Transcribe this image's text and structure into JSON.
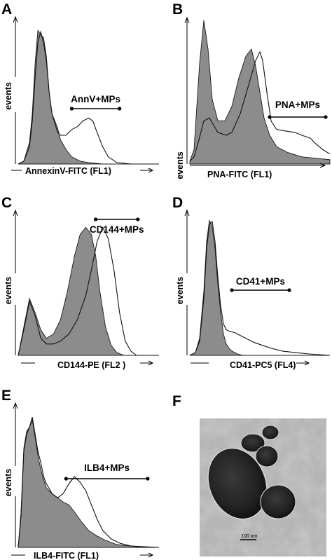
{
  "chart_data": [
    {
      "panel": "A",
      "type": "histogram-overlay",
      "ylabel": "events",
      "xlabel": "AnnexinV-FITC  (FL1)",
      "gate_label": "AnnV+MPs",
      "gate_range": [
        0.38,
        0.72
      ],
      "series": [
        {
          "style": "filled",
          "x": [
            0,
            0.04,
            0.08,
            0.1,
            0.12,
            0.14,
            0.16,
            0.18,
            0.2,
            0.22,
            0.24,
            0.26,
            0.28,
            0.3,
            0.34,
            0.38,
            0.44,
            0.5,
            0.6,
            1.0
          ],
          "y": [
            0,
            0.02,
            0.15,
            0.35,
            0.7,
            0.93,
            0.9,
            0.88,
            0.75,
            0.5,
            0.35,
            0.3,
            0.25,
            0.17,
            0.1,
            0.05,
            0.02,
            0.01,
            0,
            0
          ]
        },
        {
          "style": "open",
          "x": [
            0,
            0.04,
            0.08,
            0.1,
            0.12,
            0.14,
            0.16,
            0.18,
            0.2,
            0.22,
            0.24,
            0.28,
            0.3,
            0.34,
            0.38,
            0.42,
            0.46,
            0.5,
            0.53,
            0.56,
            0.6,
            0.64,
            0.7,
            0.8,
            1.0
          ],
          "y": [
            0,
            0.02,
            0.12,
            0.3,
            0.6,
            0.85,
            0.92,
            0.84,
            0.72,
            0.5,
            0.35,
            0.22,
            0.2,
            0.2,
            0.24,
            0.26,
            0.3,
            0.32,
            0.3,
            0.22,
            0.12,
            0.05,
            0.01,
            0,
            0
          ]
        }
      ]
    },
    {
      "panel": "B",
      "type": "histogram-overlay",
      "ylabel": "events",
      "xlabel": "PNA-FITC  (FL1)",
      "gate_label": "PNA+MPs",
      "gate_range": [
        0.57,
        0.97
      ],
      "series": [
        {
          "style": "filled",
          "x": [
            0,
            0.03,
            0.07,
            0.1,
            0.13,
            0.16,
            0.2,
            0.25,
            0.3,
            0.35,
            0.4,
            0.44,
            0.47,
            0.5,
            0.53,
            0.57,
            0.62,
            0.7,
            0.8,
            0.9,
            1.0
          ],
          "y": [
            0.02,
            0.1,
            0.7,
            1.0,
            0.8,
            0.45,
            0.3,
            0.3,
            0.4,
            0.6,
            0.75,
            0.8,
            0.68,
            0.5,
            0.32,
            0.2,
            0.12,
            0.08,
            0.05,
            0.04,
            0.03
          ]
        },
        {
          "style": "open",
          "x": [
            0,
            0.03,
            0.06,
            0.1,
            0.14,
            0.2,
            0.26,
            0.3,
            0.36,
            0.42,
            0.47,
            0.5,
            0.52,
            0.55,
            0.58,
            0.62,
            0.68,
            0.75,
            0.8,
            0.86,
            0.9,
            0.95,
            1.0
          ],
          "y": [
            0.02,
            0.05,
            0.15,
            0.3,
            0.32,
            0.22,
            0.2,
            0.22,
            0.35,
            0.55,
            0.72,
            0.78,
            0.72,
            0.5,
            0.3,
            0.24,
            0.23,
            0.22,
            0.2,
            0.18,
            0.14,
            0.1,
            0.07
          ]
        }
      ]
    },
    {
      "panel": "C",
      "type": "histogram-overlay",
      "ylabel": "events",
      "xlabel": "CD144-PE  (FL2 )",
      "gate_label": "CD144+MPs",
      "gate_range": [
        0.55,
        0.85
      ],
      "series": [
        {
          "style": "filled",
          "x": [
            0,
            0.04,
            0.08,
            0.12,
            0.16,
            0.2,
            0.25,
            0.3,
            0.35,
            0.4,
            0.44,
            0.48,
            0.52,
            0.55,
            0.58,
            0.62,
            0.66,
            0.7,
            0.75,
            1.0
          ],
          "y": [
            0,
            0.2,
            0.4,
            0.3,
            0.18,
            0.12,
            0.15,
            0.25,
            0.45,
            0.7,
            0.85,
            0.9,
            0.85,
            0.7,
            0.45,
            0.2,
            0.07,
            0.02,
            0,
            0
          ]
        },
        {
          "style": "open",
          "x": [
            0,
            0.04,
            0.08,
            0.12,
            0.16,
            0.2,
            0.25,
            0.3,
            0.36,
            0.42,
            0.48,
            0.52,
            0.56,
            0.6,
            0.64,
            0.68,
            0.72,
            0.76,
            0.8,
            0.84,
            1.0
          ],
          "y": [
            0,
            0.18,
            0.38,
            0.28,
            0.12,
            0.08,
            0.08,
            0.1,
            0.15,
            0.25,
            0.42,
            0.6,
            0.8,
            0.9,
            0.82,
            0.6,
            0.3,
            0.1,
            0.03,
            0,
            0
          ]
        }
      ]
    },
    {
      "panel": "D",
      "type": "histogram-overlay",
      "ylabel": "events",
      "xlabel": "CD41-PC5  (FL4)",
      "gate_label": "CD41+MPs",
      "gate_range": [
        0.3,
        0.71
      ],
      "series": [
        {
          "style": "filled",
          "x": [
            0,
            0.04,
            0.07,
            0.1,
            0.12,
            0.14,
            0.16,
            0.18,
            0.2,
            0.22,
            0.24,
            0.26,
            0.28,
            0.3,
            0.32,
            0.34,
            0.38,
            1.0
          ],
          "y": [
            0,
            0.02,
            0.12,
            0.45,
            0.8,
            0.95,
            0.9,
            0.75,
            0.5,
            0.3,
            0.15,
            0.08,
            0.05,
            0.03,
            0.02,
            0.01,
            0,
            0
          ]
        },
        {
          "style": "open",
          "x": [
            0,
            0.04,
            0.07,
            0.1,
            0.12,
            0.14,
            0.16,
            0.18,
            0.2,
            0.22,
            0.24,
            0.26,
            0.28,
            0.32,
            0.36,
            0.4,
            0.46,
            0.52,
            0.58,
            0.66,
            0.75,
            0.85,
            1.0
          ],
          "y": [
            0,
            0.02,
            0.1,
            0.4,
            0.75,
            0.92,
            0.94,
            0.8,
            0.55,
            0.35,
            0.22,
            0.18,
            0.17,
            0.16,
            0.14,
            0.12,
            0.09,
            0.07,
            0.05,
            0.03,
            0.02,
            0.01,
            0
          ]
        }
      ]
    },
    {
      "panel": "E",
      "type": "histogram-overlay",
      "ylabel": "events",
      "xlabel": "ILB4-FITC  (FL1)",
      "gate_label": "ILB4+MPs",
      "gate_range": [
        0.34,
        0.92
      ],
      "series": [
        {
          "style": "filled",
          "x": [
            0,
            0.02,
            0.04,
            0.06,
            0.08,
            0.1,
            0.12,
            0.14,
            0.16,
            0.18,
            0.2,
            0.24,
            0.28,
            0.32,
            0.36,
            0.4,
            0.45,
            0.5,
            0.56,
            0.62,
            0.7,
            0.8,
            1.0
          ],
          "y": [
            0,
            0.25,
            0.7,
            0.82,
            0.85,
            0.9,
            0.78,
            0.65,
            0.55,
            0.48,
            0.42,
            0.38,
            0.35,
            0.32,
            0.3,
            0.25,
            0.18,
            0.12,
            0.08,
            0.05,
            0.02,
            0.01,
            0
          ]
        },
        {
          "style": "open",
          "x": [
            0,
            0.02,
            0.04,
            0.06,
            0.08,
            0.1,
            0.12,
            0.14,
            0.16,
            0.18,
            0.2,
            0.24,
            0.28,
            0.32,
            0.36,
            0.4,
            0.44,
            0.48,
            0.52,
            0.56,
            0.6,
            0.66,
            0.72,
            0.8,
            0.9,
            1.0
          ],
          "y": [
            0,
            0.22,
            0.68,
            0.8,
            0.85,
            0.92,
            0.8,
            0.68,
            0.6,
            0.5,
            0.45,
            0.38,
            0.35,
            0.38,
            0.45,
            0.5,
            0.46,
            0.4,
            0.3,
            0.2,
            0.12,
            0.06,
            0.03,
            0.01,
            0,
            0
          ]
        }
      ]
    }
  ],
  "figure": {
    "letters": [
      "A",
      "B",
      "C",
      "D",
      "E",
      "F"
    ],
    "micrograph": {
      "scale_bar_label": "100 nm"
    }
  }
}
